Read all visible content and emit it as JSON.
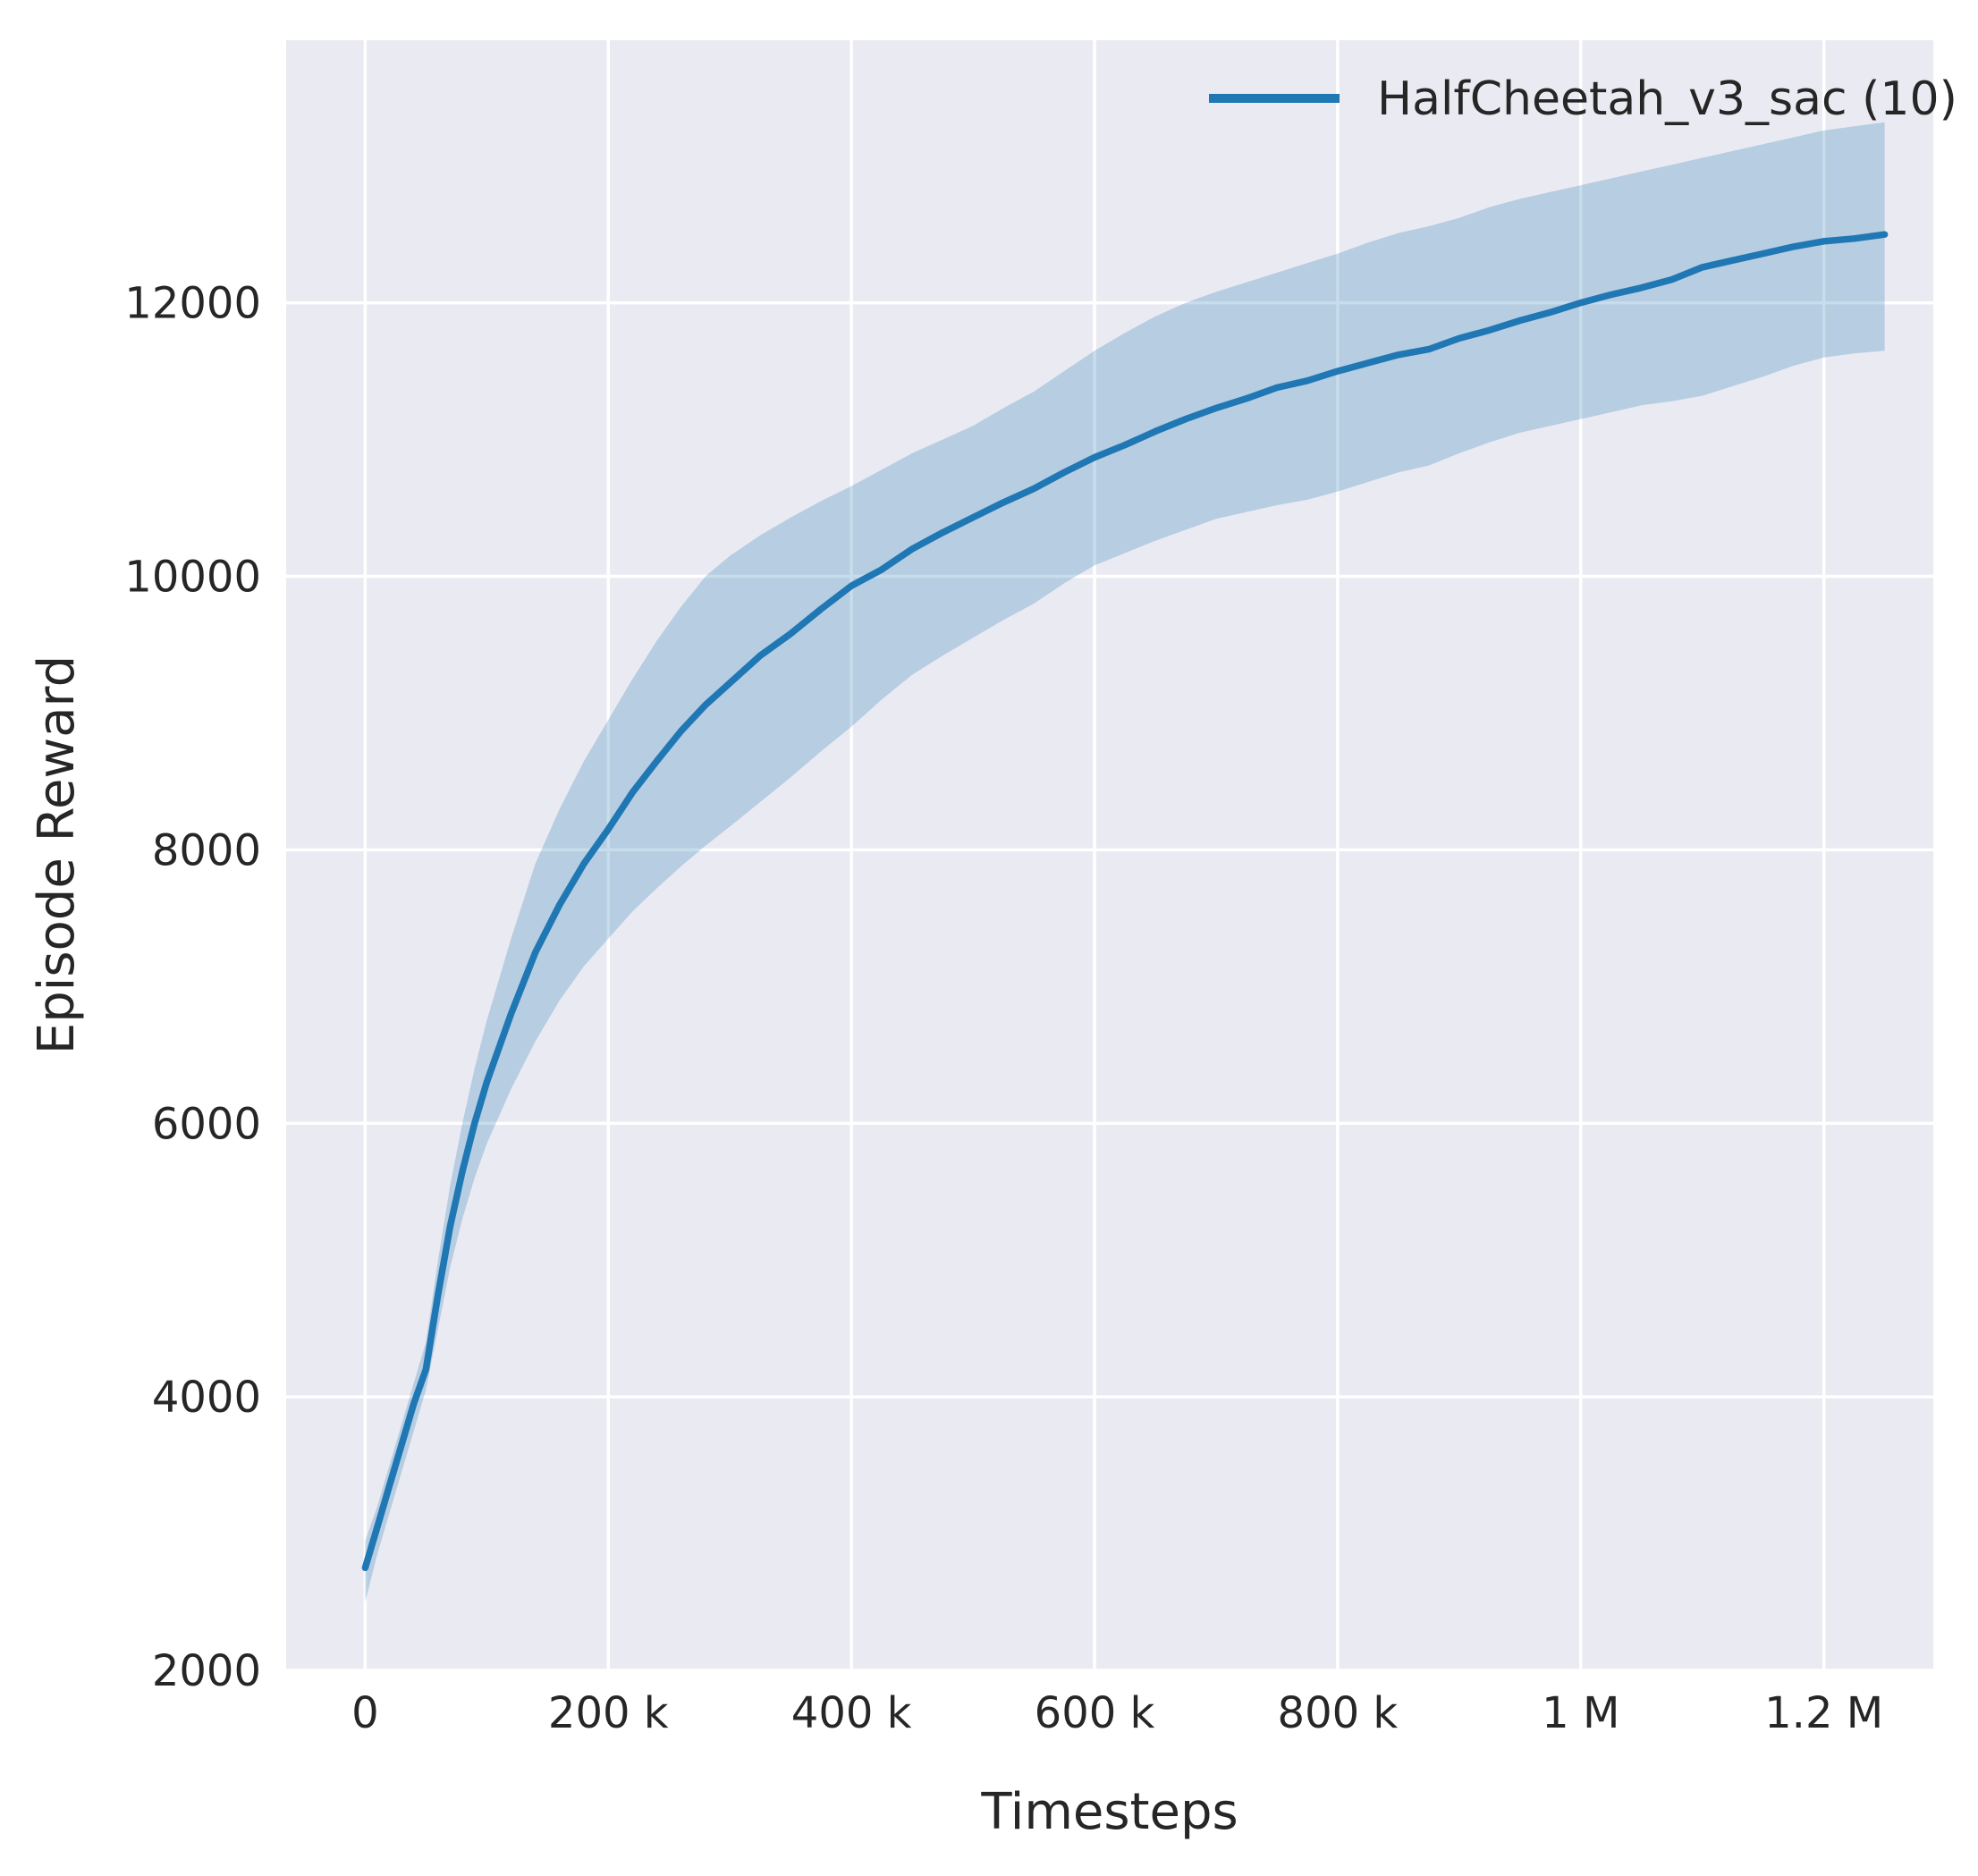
{
  "chart_data": {
    "type": "line",
    "title": "",
    "xlabel": "Timesteps",
    "ylabel": "Episode Reward",
    "xlim": [
      -65000,
      1290000
    ],
    "ylim": [
      2000,
      13920
    ],
    "grid": true,
    "legend_position": "upper right",
    "x_ticks": [
      {
        "value": 0,
        "label": "0"
      },
      {
        "value": 200000,
        "label": "200 k"
      },
      {
        "value": 400000,
        "label": "400 k"
      },
      {
        "value": 600000,
        "label": "600 k"
      },
      {
        "value": 800000,
        "label": "800 k"
      },
      {
        "value": 1000000,
        "label": "1 M"
      },
      {
        "value": 1200000,
        "label": "1.2 M"
      }
    ],
    "y_ticks": [
      {
        "value": 2000,
        "label": "2000"
      },
      {
        "value": 4000,
        "label": "4000"
      },
      {
        "value": 6000,
        "label": "6000"
      },
      {
        "value": 8000,
        "label": "8000"
      },
      {
        "value": 10000,
        "label": "10000"
      },
      {
        "value": 12000,
        "label": "12000"
      }
    ],
    "colors": {
      "plot_background": "#eaeaf2",
      "gridline": "#ffffff",
      "text": "#262626",
      "series_line": "#1f77b4",
      "band_opacity": 0.25
    },
    "series": [
      {
        "name": "HalfCheetah_v3_sac (10)",
        "color": "#1f77b4",
        "x": [
          0,
          10000,
          20000,
          30000,
          40000,
          50000,
          60000,
          70000,
          80000,
          90000,
          100000,
          120000,
          140000,
          160000,
          180000,
          200000,
          220000,
          240000,
          260000,
          280000,
          300000,
          325000,
          350000,
          375000,
          400000,
          425000,
          450000,
          475000,
          500000,
          525000,
          550000,
          575000,
          600000,
          625000,
          650000,
          675000,
          700000,
          725000,
          750000,
          775000,
          800000,
          825000,
          850000,
          875000,
          900000,
          925000,
          950000,
          975000,
          1000000,
          1025000,
          1050000,
          1075000,
          1100000,
          1125000,
          1150000,
          1175000,
          1200000,
          1225000,
          1250000
        ],
        "mean": [
          2750,
          3050,
          3350,
          3650,
          3950,
          4200,
          4750,
          5250,
          5650,
          6000,
          6300,
          6800,
          7250,
          7600,
          7900,
          8150,
          8420,
          8650,
          8870,
          9060,
          9220,
          9420,
          9580,
          9760,
          9930,
          10050,
          10200,
          10320,
          10430,
          10540,
          10640,
          10760,
          10870,
          10960,
          11060,
          11150,
          11230,
          11300,
          11380,
          11430,
          11500,
          11560,
          11620,
          11660,
          11740,
          11800,
          11870,
          11930,
          12000,
          12060,
          12110,
          12170,
          12260,
          12310,
          12360,
          12410,
          12450,
          12470,
          12500
        ],
        "lower": [
          2500,
          2850,
          3150,
          3450,
          3750,
          4050,
          4500,
          4950,
          5300,
          5600,
          5850,
          6250,
          6600,
          6900,
          7150,
          7350,
          7550,
          7720,
          7880,
          8030,
          8170,
          8350,
          8530,
          8720,
          8900,
          9100,
          9280,
          9420,
          9550,
          9680,
          9800,
          9950,
          10080,
          10170,
          10260,
          10340,
          10420,
          10470,
          10520,
          10560,
          10620,
          10690,
          10760,
          10810,
          10900,
          10980,
          11050,
          11100,
          11150,
          11200,
          11250,
          11280,
          11320,
          11390,
          11460,
          11540,
          11600,
          11630,
          11650
        ],
        "upper": [
          2950,
          3200,
          3500,
          3800,
          4100,
          4400,
          5000,
          5550,
          6000,
          6400,
          6750,
          7350,
          7900,
          8300,
          8650,
          8950,
          9250,
          9530,
          9780,
          10000,
          10150,
          10300,
          10430,
          10550,
          10660,
          10780,
          10900,
          11000,
          11100,
          11230,
          11350,
          11500,
          11650,
          11780,
          11900,
          12000,
          12080,
          12150,
          12220,
          12290,
          12360,
          12440,
          12510,
          12560,
          12620,
          12700,
          12760,
          12810,
          12860,
          12910,
          12960,
          13010,
          13060,
          13110,
          13160,
          13210,
          13260,
          13290,
          13320
        ]
      }
    ]
  }
}
